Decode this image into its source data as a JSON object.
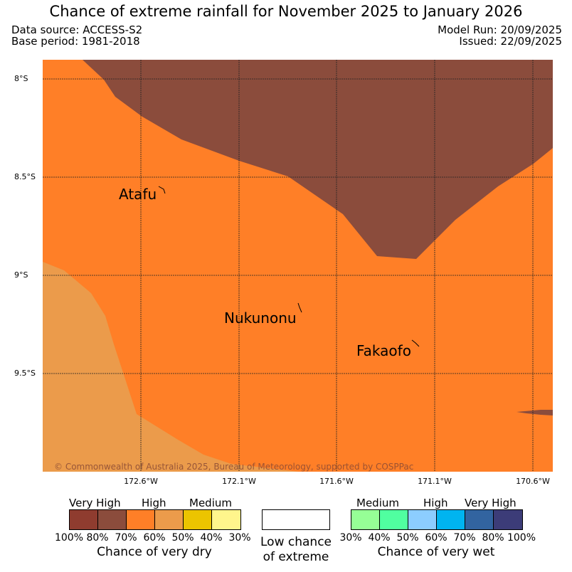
{
  "header": {
    "title": "Chance of extreme rainfall for November 2025 to January 2026",
    "data_source": "Data source: ACCESS-S2",
    "base_period": "Base period: 1981-2018",
    "model_run": "Model Run: 20/09/2025",
    "issued": "Issued: 22/09/2025"
  },
  "map": {
    "lat_ticks": [
      "8°S",
      "8.5°S",
      "9°S",
      "9.5°S"
    ],
    "lon_ticks": [
      "172.6°W",
      "172.1°W",
      "171.6°W",
      "171.1°W",
      "170.6°W"
    ],
    "places": [
      "Atafu",
      "Nukunonu",
      "Fakaofo"
    ],
    "copyright": "© Commonwealth of Australia 2025, Bureau of Meteorology, supported by COSPPac",
    "region_colors": {
      "very_high_dry_80": "#8b4c3c",
      "high_dry_60": "#ff7f27",
      "medium_dry_70_to_60": "#eb9b4b",
      "dry_margin": "#e99a4a"
    }
  },
  "legend": {
    "dry": {
      "categories": [
        "Very High",
        "High",
        "Medium"
      ],
      "percent_labels": [
        "100%",
        "80%",
        "70%",
        "60%",
        "50%",
        "40%",
        "30%"
      ],
      "colors": [
        "#8f3c2f",
        "#8b4c3c",
        "#ff7f27",
        "#eb9b4b",
        "#ebc400",
        "#fff58c"
      ],
      "title": "Chance of very dry"
    },
    "low_chance": {
      "line1": "Low chance",
      "line2": "of extreme"
    },
    "wet": {
      "categories": [
        "Medium",
        "High",
        "Very High"
      ],
      "percent_labels": [
        "30%",
        "40%",
        "50%",
        "60%",
        "70%",
        "80%",
        "100%"
      ],
      "colors": [
        "#96ff96",
        "#50ffa0",
        "#8ccdff",
        "#00b4f0",
        "#3264a0",
        "#3c3c78"
      ],
      "title": "Chance of very wet"
    }
  }
}
